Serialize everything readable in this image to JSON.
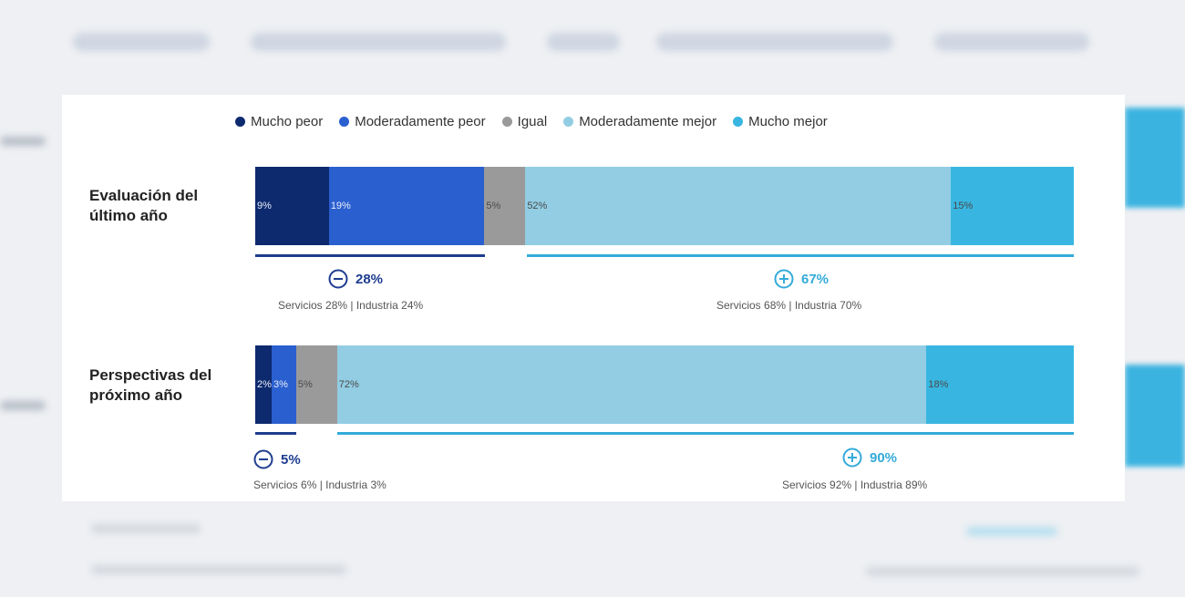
{
  "colors": {
    "mucho_peor": "#0d2a6e",
    "moderadamente_peor": "#2a5fcf",
    "igual": "#9a9a9a",
    "moderadamente_mejor": "#92cde3",
    "mucho_mejor": "#38b6e1",
    "negative_accent": "#1e3d8f",
    "positive_accent": "#34abd9"
  },
  "chart_data": {
    "type": "bar",
    "orientation": "horizontal-stacked",
    "legend_position": "top",
    "legend": [
      "Mucho peor",
      "Moderadamente peor",
      "Igual",
      "Moderadamente mejor",
      "Mucho mejor"
    ],
    "categories": [
      "Evaluación del último año",
      "Perspectivas del próximo año"
    ],
    "series": [
      {
        "name": "Mucho peor",
        "values": [
          9,
          2
        ],
        "labels": [
          "9%",
          "2%"
        ]
      },
      {
        "name": "Moderadamente peor",
        "values": [
          19,
          3
        ],
        "labels": [
          "19%",
          "3%"
        ]
      },
      {
        "name": "Igual",
        "values": [
          5,
          5
        ],
        "labels": [
          "5%",
          "5%"
        ]
      },
      {
        "name": "Moderadamente mejor",
        "values": [
          52,
          72
        ],
        "labels": [
          "52%",
          "72%"
        ]
      },
      {
        "name": "Mucho mejor",
        "values": [
          15,
          18
        ],
        "labels": [
          "15%",
          "18%"
        ]
      }
    ],
    "rows": [
      {
        "label_line1": "Evaluación del",
        "label_line2": "último año",
        "negative": {
          "value": "28%",
          "detail": "Servicios 28% | Industria 24%"
        },
        "positive": {
          "value": "67%",
          "detail": "Servicios 68% | Industria 70%"
        }
      },
      {
        "label_line1": "Perspectivas del",
        "label_line2": "próximo año",
        "negative": {
          "value": "5%",
          "detail": "Servicios 6% | Industria 3%"
        },
        "positive": {
          "value": "90%",
          "detail": "Servicios 92% | Industria 89%"
        }
      }
    ]
  }
}
